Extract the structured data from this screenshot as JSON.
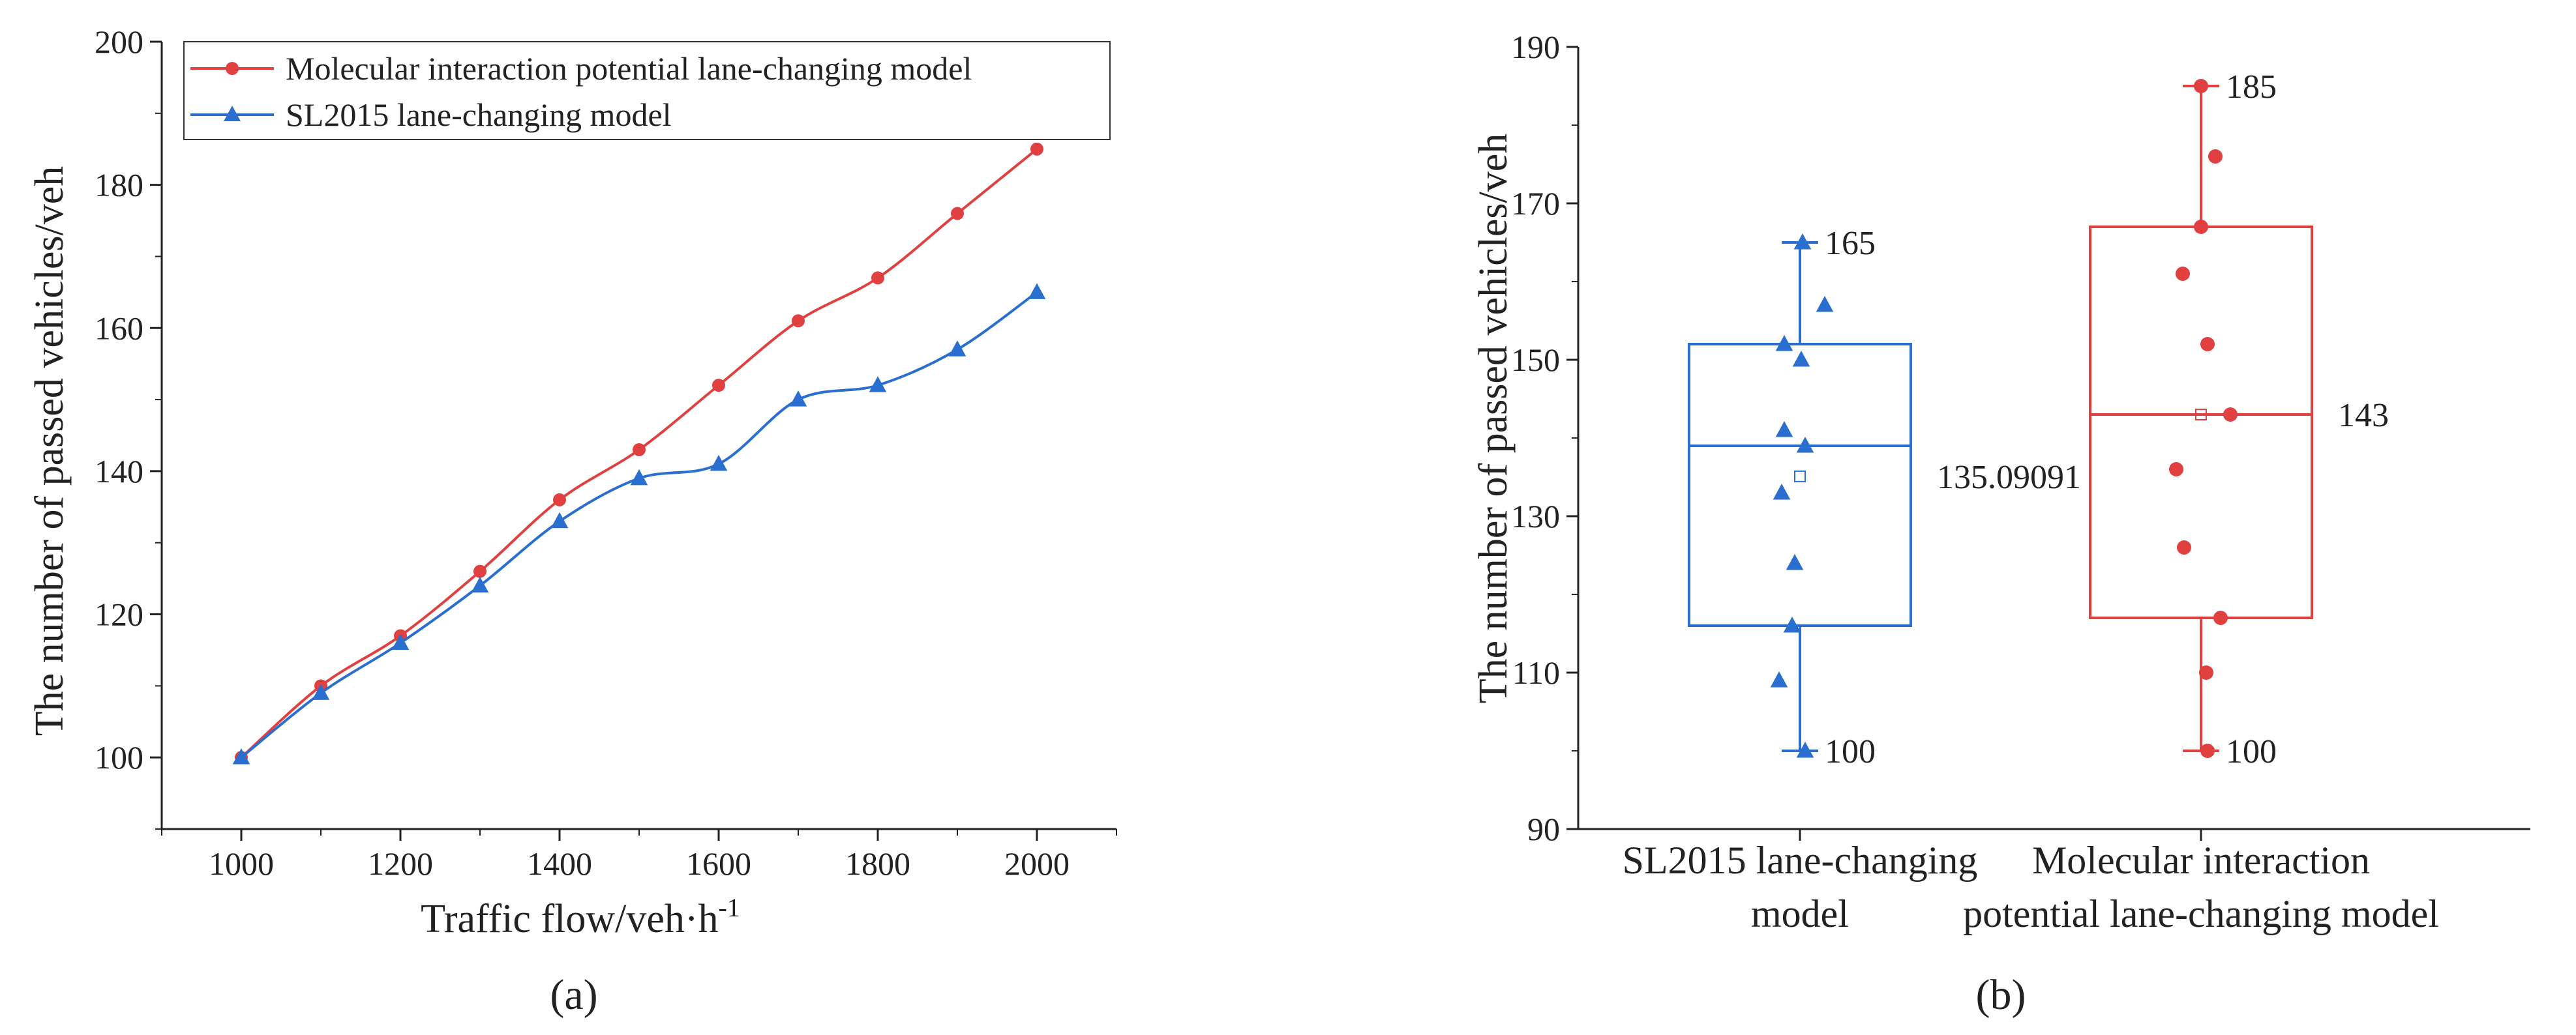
{
  "chart_data": [
    {
      "type": "line",
      "panel_label": "(a)",
      "xlabel": "Traffic flow/veh·h",
      "xlabel_sup": "-1",
      "ylabel": "The number of passed vehicles/veh",
      "x": [
        1000,
        1100,
        1200,
        1300,
        1400,
        1500,
        1600,
        1700,
        1800,
        1900,
        2000
      ],
      "xticks": [
        "1000",
        "1200",
        "1400",
        "1600",
        "1800",
        "2000"
      ],
      "yticks": [
        "100",
        "120",
        "140",
        "160",
        "180",
        "200"
      ],
      "xlim": [
        900,
        2100
      ],
      "ylim": [
        90,
        200
      ],
      "legend_position": "top-left",
      "series": [
        {
          "name": "Molecular interaction potential lane-changing model",
          "color": "#e04040",
          "marker": "circle",
          "values": [
            100,
            110,
            117,
            126,
            136,
            143,
            152,
            161,
            167,
            176,
            185
          ]
        },
        {
          "name": "SL2015 lane-changing model",
          "color": "#2a6fd0",
          "marker": "triangle",
          "values": [
            100,
            109,
            116,
            124,
            133,
            139,
            141,
            150,
            152,
            157,
            165
          ]
        }
      ]
    },
    {
      "type": "box",
      "panel_label": "(b)",
      "ylabel": "The number of passed vehicles/veh",
      "ylim": [
        90,
        190
      ],
      "yticks": [
        "90",
        "110",
        "130",
        "150",
        "170",
        "190"
      ],
      "groups": [
        {
          "label_lines": [
            "SL2015 lane-changing",
            "model"
          ],
          "color": "#2a6fd0",
          "marker": "triangle",
          "min": 100,
          "q1": 116,
          "median": 139,
          "q3": 152,
          "max": 165,
          "mean": 135.09091,
          "points": [
            100,
            109,
            116,
            124,
            133,
            139,
            141,
            150,
            152,
            157,
            165
          ],
          "mean_label": "135.09091",
          "max_label": "165",
          "min_label": "100"
        },
        {
          "label_lines": [
            "Molecular interaction",
            "potential lane-changing model"
          ],
          "color": "#e04040",
          "marker": "circle",
          "min": 100,
          "q1": 117,
          "median": 143,
          "q3": 167,
          "max": 185,
          "mean": 143,
          "points": [
            100,
            110,
            117,
            126,
            136,
            143,
            152,
            161,
            167,
            176,
            185
          ],
          "median_label": "143",
          "max_label": "185",
          "min_label": "100"
        }
      ]
    }
  ]
}
